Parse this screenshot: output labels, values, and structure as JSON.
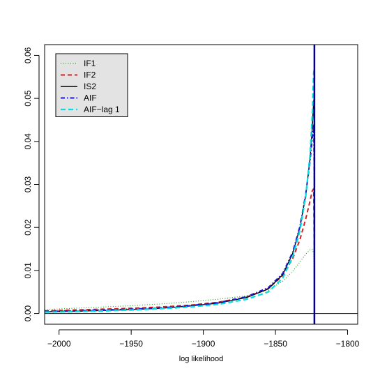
{
  "chart_data": {
    "type": "line",
    "title": "",
    "xlabel": "log likelihood",
    "ylabel": "",
    "xlim": [
      -2010,
      -1793
    ],
    "ylim": [
      -0.0025,
      0.0625
    ],
    "x_ticks": [
      -2000,
      -1950,
      -1900,
      -1850,
      -1800
    ],
    "y_ticks": [
      0.0,
      0.01,
      0.02,
      0.03,
      0.04,
      0.05,
      0.06
    ],
    "y_tick_labels": [
      "0.00",
      "0.01",
      "0.02",
      "0.03",
      "0.04",
      "0.05",
      "0.06"
    ],
    "grid": false,
    "legend_position": "top-left",
    "baseline_y": 0,
    "vertical_line": {
      "x": -1823,
      "color": "#00008b"
    },
    "series": [
      {
        "name": "IF1",
        "color": "#22a022",
        "dash": "1,2.5",
        "width": 1.2,
        "x": [
          -2010,
          -1990,
          -1970,
          -1950,
          -1930,
          -1910,
          -1890,
          -1870,
          -1855,
          -1845,
          -1838,
          -1833,
          -1829,
          -1826,
          -1824.5,
          -1823.5,
          -1823
        ],
        "y": [
          0.0009,
          0.0012,
          0.0015,
          0.0018,
          0.0022,
          0.0027,
          0.0033,
          0.0041,
          0.0054,
          0.0075,
          0.0098,
          0.012,
          0.0138,
          0.0148,
          0.0149,
          0.014,
          0.005
        ]
      },
      {
        "name": "IF2",
        "color": "#d62020",
        "dash": "6,4",
        "width": 2,
        "x": [
          -2010,
          -1990,
          -1970,
          -1950,
          -1930,
          -1910,
          -1890,
          -1870,
          -1855,
          -1845,
          -1838,
          -1833,
          -1829,
          -1826,
          -1824.5,
          -1823.5,
          -1823
        ],
        "y": [
          0.0006,
          0.0008,
          0.001,
          0.0012,
          0.0015,
          0.0019,
          0.0026,
          0.0038,
          0.0058,
          0.0088,
          0.0128,
          0.0172,
          0.022,
          0.0262,
          0.0285,
          0.029,
          0.012
        ]
      },
      {
        "name": "IS2",
        "color": "#000000",
        "dash": "",
        "width": 1.4,
        "x": [
          -2010,
          -1990,
          -1970,
          -1950,
          -1930,
          -1910,
          -1890,
          -1870,
          -1855,
          -1845,
          -1838,
          -1833,
          -1829,
          -1826,
          -1824.5,
          -1823.5,
          -1823
        ],
        "y": [
          0.0004,
          0.0005,
          0.0007,
          0.0009,
          0.0012,
          0.0017,
          0.0024,
          0.0037,
          0.0057,
          0.009,
          0.014,
          0.02,
          0.0275,
          0.036,
          0.043,
          0.0495,
          0.05
        ]
      },
      {
        "name": "AIF",
        "color": "#1a1ad6",
        "dash": "6,3,1.5,3",
        "width": 2,
        "x": [
          -2010,
          -1990,
          -1970,
          -1950,
          -1930,
          -1910,
          -1890,
          -1870,
          -1855,
          -1845,
          -1838,
          -1833,
          -1829,
          -1826,
          -1824.5,
          -1823.5,
          -1823
        ],
        "y": [
          0.0005,
          0.0006,
          0.0008,
          0.001,
          0.0013,
          0.0018,
          0.0025,
          0.0039,
          0.006,
          0.0093,
          0.0143,
          0.0203,
          0.0278,
          0.0355,
          0.0405,
          0.044,
          0.03
        ]
      },
      {
        "name": "AIF−lag 1",
        "color": "#00e0e0",
        "dash": "7,4",
        "width": 2.2,
        "x": [
          -2010,
          -1990,
          -1970,
          -1950,
          -1930,
          -1910,
          -1890,
          -1870,
          -1855,
          -1845,
          -1838,
          -1833,
          -1829,
          -1826,
          -1824.5,
          -1823.5,
          -1823
        ],
        "y": [
          0.0003,
          0.0004,
          0.0006,
          0.0008,
          0.0011,
          0.0015,
          0.0021,
          0.0033,
          0.005,
          0.0082,
          0.0132,
          0.0193,
          0.0272,
          0.037,
          0.046,
          0.056,
          0.057
        ]
      }
    ]
  }
}
